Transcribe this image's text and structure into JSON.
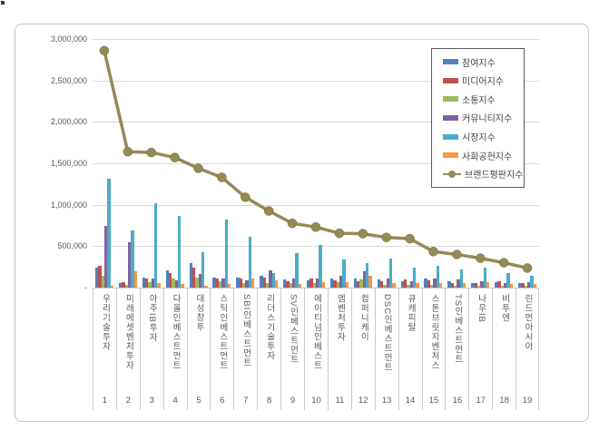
{
  "page": {
    "background": "#ffffff"
  },
  "chart_data": {
    "type": "combo-bar-line",
    "title": "",
    "grid": true,
    "legend_position": "top-right",
    "y_axis": {
      "min": 0,
      "max": 3000000,
      "step": 500000,
      "tick_labels": [
        "3,000,000",
        "2,500,000",
        "2,000,000",
        "1,500,000",
        "1,000,000",
        "500,000",
        "-"
      ]
    },
    "categories": [
      {
        "rank": "1",
        "label": "우리기술투자"
      },
      {
        "rank": "2",
        "label": "미래에셋벤처투자"
      },
      {
        "rank": "3",
        "label": "아주IB투자"
      },
      {
        "rank": "4",
        "label": "다올인베스트먼트"
      },
      {
        "rank": "5",
        "label": "대성창투"
      },
      {
        "rank": "6",
        "label": "스틱인베스트먼트"
      },
      {
        "rank": "7",
        "label": "SBI인베스트먼트"
      },
      {
        "rank": "8",
        "label": "리더스기술투자"
      },
      {
        "rank": "9",
        "label": "SV인베스트먼트"
      },
      {
        "rank": "10",
        "label": "에이티넘인베스트"
      },
      {
        "rank": "11",
        "label": "엠벤처투자"
      },
      {
        "rank": "12",
        "label": "컴퍼니케이"
      },
      {
        "rank": "13",
        "label": "DSC인베스트먼트"
      },
      {
        "rank": "14",
        "label": "큐캐피탈"
      },
      {
        "rank": "15",
        "label": "스톤브릿지벤처스"
      },
      {
        "rank": "16",
        "label": "TS인베스트먼트"
      },
      {
        "rank": "17",
        "label": "나우IB"
      },
      {
        "rank": "18",
        "label": "비투엔"
      },
      {
        "rank": "19",
        "label": "린드먼아시아"
      }
    ],
    "bar_series": [
      {
        "name": "참여지수",
        "id": "participation-index",
        "color": "#4F81BD",
        "values": [
          245000,
          55000,
          120000,
          205000,
          300000,
          120000,
          120000,
          140000,
          95000,
          85000,
          115000,
          105000,
          95000,
          80000,
          105000,
          80000,
          55000,
          65000,
          50000
        ]
      },
      {
        "name": "미디어지수",
        "id": "media-index",
        "color": "#C0504D",
        "values": [
          265000,
          65000,
          115000,
          180000,
          245000,
          110000,
          115000,
          125000,
          75000,
          105000,
          90000,
          80000,
          80000,
          95000,
          90000,
          55000,
          60000,
          80000,
          55000
        ]
      },
      {
        "name": "소통지수",
        "id": "communication-index",
        "color": "#9BBB59",
        "values": [
          145000,
          30000,
          70000,
          105000,
          120000,
          75000,
          55000,
          60000,
          55000,
          55000,
          65000,
          100000,
          30000,
          30000,
          35000,
          25000,
          25000,
          25000,
          20000
        ]
      },
      {
        "name": "커뮤니티지수",
        "id": "community-index",
        "color": "#8064A2",
        "values": [
          750000,
          550000,
          105000,
          90000,
          170000,
          105000,
          85000,
          205000,
          115000,
          115000,
          145000,
          195000,
          115000,
          75000,
          115000,
          95000,
          80000,
          55000,
          65000
        ]
      },
      {
        "name": "시장지수",
        "id": "market-index",
        "color": "#4BACC6",
        "values": [
          1310000,
          690000,
          1015000,
          870000,
          425000,
          820000,
          610000,
          175000,
          415000,
          510000,
          340000,
          300000,
          350000,
          245000,
          265000,
          215000,
          240000,
          180000,
          145000
        ]
      },
      {
        "name": "사회공헌지수",
        "id": "social-contribution-index",
        "color": "#F79646",
        "values": [
          25000,
          200000,
          50000,
          40000,
          20000,
          45000,
          105000,
          90000,
          45000,
          65000,
          65000,
          140000,
          50000,
          55000,
          55000,
          50000,
          65000,
          45000,
          45000
        ]
      }
    ],
    "line_series": {
      "name": "브랜드평판지수",
      "id": "brand-reputation-index",
      "color": "#948A54",
      "marker": "circle",
      "values": [
        2860000,
        1640000,
        1630000,
        1570000,
        1440000,
        1330000,
        1090000,
        925000,
        775000,
        730000,
        655000,
        650000,
        605000,
        590000,
        435000,
        400000,
        355000,
        300000,
        235000
      ]
    }
  }
}
